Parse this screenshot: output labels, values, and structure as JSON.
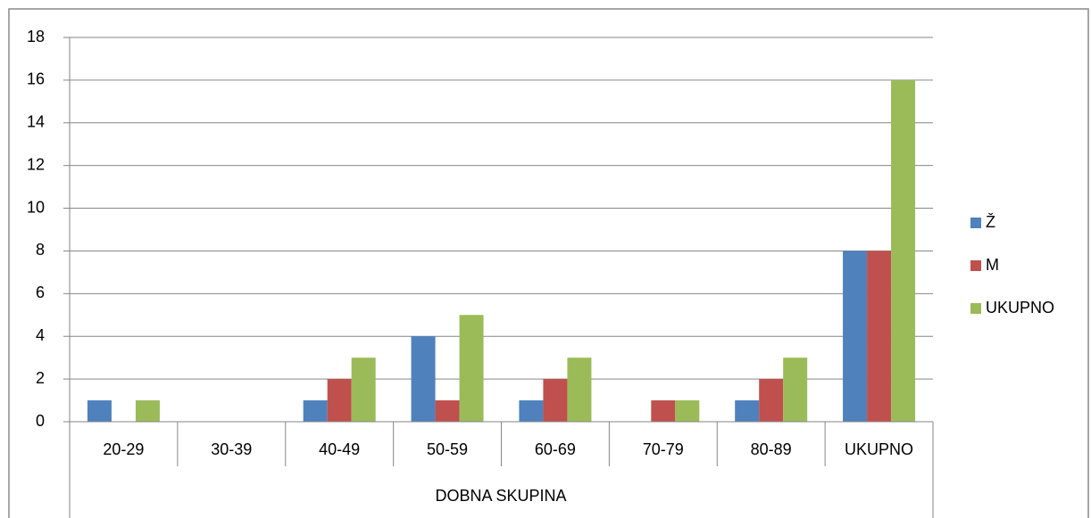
{
  "chart_data": {
    "type": "bar",
    "categories": [
      "20-29",
      "30-39",
      "40-49",
      "50-59",
      "60-69",
      "70-79",
      "80-89",
      "UKUPNO"
    ],
    "x_group_label": "DOBNA SKUPINA",
    "series": [
      {
        "name": "Ž",
        "color": "#4f81bd",
        "values": [
          1,
          0,
          1,
          4,
          1,
          0,
          1,
          8
        ]
      },
      {
        "name": "M",
        "color": "#c0504d",
        "values": [
          0,
          0,
          2,
          1,
          2,
          1,
          2,
          8
        ]
      },
      {
        "name": "UKUPNO",
        "color": "#9bbb59",
        "values": [
          1,
          0,
          3,
          5,
          3,
          1,
          3,
          16
        ]
      }
    ],
    "ylim": [
      0,
      18
    ],
    "yticks": [
      0,
      2,
      4,
      6,
      8,
      10,
      12,
      14,
      16,
      18
    ],
    "grid": true,
    "legend": "right"
  }
}
